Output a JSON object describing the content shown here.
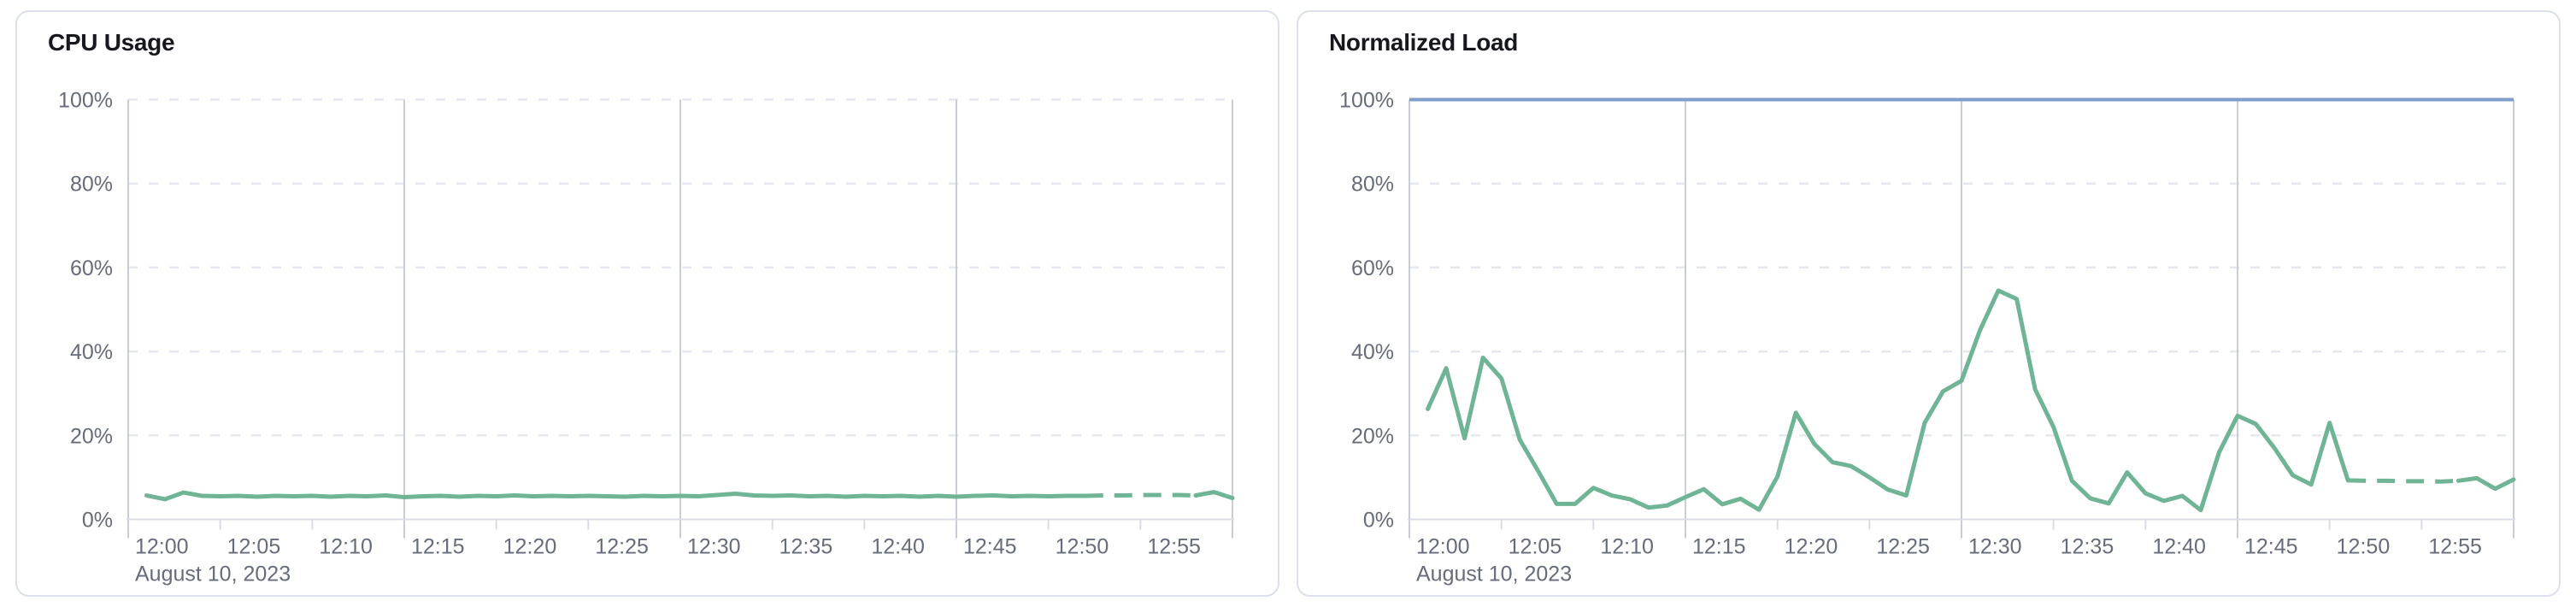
{
  "page": {
    "background": "#ffffff",
    "panel_border": "#dbe0ea",
    "panel_bg": "#ffffff"
  },
  "colors": {
    "series_green": "#6FB494",
    "limit_blue": "#7F9EC9",
    "grid_major": "#c9cdd6",
    "axis_line": "#d9dce4",
    "grid_dashed": "#e6e8f1",
    "label_text": "#666c7b",
    "title_text": "#16181d"
  },
  "chart_data": [
    {
      "type": "line",
      "title": "CPU Usage",
      "ylabel": "",
      "xlabel": "",
      "ylim": [
        0,
        100
      ],
      "grid": "on",
      "legend": "none",
      "y_ticks": [
        {
          "v": 0,
          "label": "0%"
        },
        {
          "v": 20,
          "label": "20%"
        },
        {
          "v": 40,
          "label": "40%"
        },
        {
          "v": 60,
          "label": "60%"
        },
        {
          "v": 80,
          "label": "80%"
        },
        {
          "v": 100,
          "label": "100%"
        }
      ],
      "x_tick_labels": [
        "12:00",
        "12:05",
        "12:10",
        "12:15",
        "12:20",
        "12:25",
        "12:30",
        "12:35",
        "12:40",
        "12:45",
        "12:50",
        "12:55"
      ],
      "x_major_gridlines_min": [
        0,
        15,
        30,
        45,
        60
      ],
      "x_range_min": [
        0,
        60
      ],
      "date_label": "August 10, 2023",
      "series": [
        {
          "name": "cpu-usage",
          "unit": "%",
          "dash_segment_min": [
            52,
            58
          ],
          "points_t_min_v_pct": [
            [
              1,
              5.7
            ],
            [
              2,
              4.8
            ],
            [
              3,
              6.4
            ],
            [
              4,
              5.6
            ],
            [
              5,
              5.5
            ],
            [
              6,
              5.6
            ],
            [
              7,
              5.4
            ],
            [
              8,
              5.6
            ],
            [
              9,
              5.5
            ],
            [
              10,
              5.6
            ],
            [
              11,
              5.4
            ],
            [
              12,
              5.6
            ],
            [
              13,
              5.5
            ],
            [
              14,
              5.7
            ],
            [
              15,
              5.3
            ],
            [
              16,
              5.5
            ],
            [
              17,
              5.6
            ],
            [
              18,
              5.4
            ],
            [
              19,
              5.6
            ],
            [
              20,
              5.5
            ],
            [
              21,
              5.7
            ],
            [
              22,
              5.5
            ],
            [
              23,
              5.6
            ],
            [
              24,
              5.5
            ],
            [
              25,
              5.6
            ],
            [
              26,
              5.5
            ],
            [
              27,
              5.4
            ],
            [
              28,
              5.6
            ],
            [
              29,
              5.5
            ],
            [
              30,
              5.6
            ],
            [
              31,
              5.5
            ],
            [
              32,
              5.8
            ],
            [
              33,
              6.1
            ],
            [
              34,
              5.7
            ],
            [
              35,
              5.6
            ],
            [
              36,
              5.7
            ],
            [
              37,
              5.5
            ],
            [
              38,
              5.6
            ],
            [
              39,
              5.4
            ],
            [
              40,
              5.6
            ],
            [
              41,
              5.5
            ],
            [
              42,
              5.6
            ],
            [
              43,
              5.4
            ],
            [
              44,
              5.6
            ],
            [
              45,
              5.4
            ],
            [
              46,
              5.6
            ],
            [
              47,
              5.7
            ],
            [
              48,
              5.5
            ],
            [
              49,
              5.6
            ],
            [
              50,
              5.5
            ],
            [
              51,
              5.6
            ],
            [
              52,
              5.6
            ],
            [
              53,
              5.7
            ],
            [
              54,
              5.7
            ],
            [
              55,
              5.8
            ],
            [
              56,
              5.8
            ],
            [
              57,
              5.8
            ],
            [
              58,
              5.7
            ],
            [
              59,
              6.5
            ],
            [
              60,
              5.1
            ]
          ]
        }
      ]
    },
    {
      "type": "line",
      "title": "Normalized Load",
      "ylabel": "",
      "xlabel": "",
      "ylim": [
        0,
        100
      ],
      "grid": "on",
      "legend": "none",
      "y_ticks": [
        {
          "v": 0,
          "label": "0%"
        },
        {
          "v": 20,
          "label": "20%"
        },
        {
          "v": 40,
          "label": "40%"
        },
        {
          "v": 60,
          "label": "60%"
        },
        {
          "v": 80,
          "label": "80%"
        },
        {
          "v": 100,
          "label": "100%"
        }
      ],
      "x_tick_labels": [
        "12:00",
        "12:05",
        "12:10",
        "12:15",
        "12:20",
        "12:25",
        "12:30",
        "12:35",
        "12:40",
        "12:45",
        "12:50",
        "12:55"
      ],
      "x_major_gridlines_min": [
        0,
        15,
        30,
        45,
        60
      ],
      "x_range_min": [
        0,
        60
      ],
      "date_label": "August 10, 2023",
      "series": [
        {
          "name": "normalized-load",
          "unit": "%",
          "dash_segment_min": [
            51,
            57
          ],
          "points_t_min_v_pct": [
            [
              1,
              26.3
            ],
            [
              2,
              36
            ],
            [
              3,
              19.3
            ],
            [
              4,
              38.5
            ],
            [
              5,
              33.6
            ],
            [
              6,
              19
            ],
            [
              7,
              11.5
            ],
            [
              8,
              3.7
            ],
            [
              9,
              3.7
            ],
            [
              10,
              7.5
            ],
            [
              11,
              5.7
            ],
            [
              12,
              4.8
            ],
            [
              13,
              2.8
            ],
            [
              14,
              3.3
            ],
            [
              15,
              5.3
            ],
            [
              16,
              7.2
            ],
            [
              17,
              3.6
            ],
            [
              18,
              4.9
            ],
            [
              19,
              2.3
            ],
            [
              20,
              10.2
            ],
            [
              21,
              25.4
            ],
            [
              22,
              18
            ],
            [
              23,
              13.6
            ],
            [
              24,
              12.7
            ],
            [
              25,
              10
            ],
            [
              26,
              7.1
            ],
            [
              27,
              5.7
            ],
            [
              28,
              23
            ],
            [
              29,
              30.5
            ],
            [
              30,
              33
            ],
            [
              31,
              45
            ],
            [
              32,
              54.5
            ],
            [
              33,
              52.5
            ],
            [
              34,
              31
            ],
            [
              35,
              22
            ],
            [
              36,
              9.2
            ],
            [
              37,
              5
            ],
            [
              38,
              3.8
            ],
            [
              39,
              11.2
            ],
            [
              40,
              6.2
            ],
            [
              41,
              4.4
            ],
            [
              42,
              5.6
            ],
            [
              43,
              2.2
            ],
            [
              44,
              16
            ],
            [
              45,
              24.7
            ],
            [
              46,
              22.7
            ],
            [
              47,
              17
            ],
            [
              48,
              10.5
            ],
            [
              49,
              8.3
            ],
            [
              50,
              23
            ],
            [
              51,
              9.3
            ],
            [
              52,
              9.2
            ],
            [
              53,
              9.2
            ],
            [
              54,
              9.1
            ],
            [
              55,
              9.1
            ],
            [
              56,
              9.0
            ],
            [
              57,
              9.2
            ],
            [
              58,
              9.8
            ],
            [
              59,
              7.3
            ],
            [
              60,
              9.5
            ]
          ]
        },
        {
          "name": "limit-100pct",
          "unit": "%",
          "constant_v_pct": 100
        }
      ]
    }
  ]
}
